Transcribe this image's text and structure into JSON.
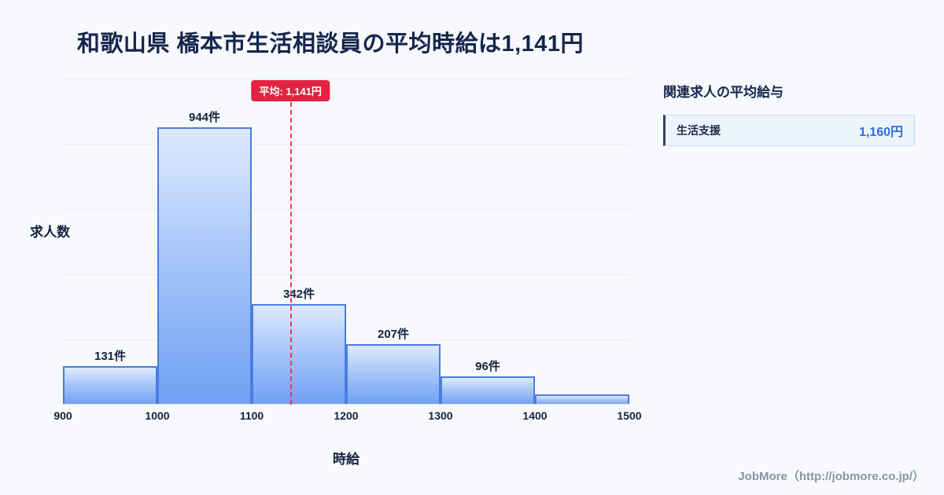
{
  "title": "和歌山県 橋本市生活相談員の平均時給は1,141円",
  "chart_data": {
    "type": "bar",
    "title": "和歌山県 橋本市生活相談員の平均時給は1,141円",
    "categories": [
      "900-1000",
      "1000-1100",
      "1100-1200",
      "1200-1300",
      "1300-1400",
      "1400-1500"
    ],
    "values": [
      131,
      944,
      342,
      207,
      96,
      35
    ],
    "bar_labels": [
      "131件",
      "944件",
      "342件",
      "207件",
      "96件",
      ""
    ],
    "x_ticks": [
      "900",
      "1000",
      "1100",
      "1200",
      "1300",
      "1400",
      "1500"
    ],
    "x_range": [
      900,
      1500
    ],
    "xlabel": "時給",
    "ylabel": "求人数",
    "ylim": [
      0,
      1000
    ],
    "grid": true,
    "legend": "none",
    "average": {
      "value": 1141,
      "label": "平均: 1,141円"
    }
  },
  "colors": {
    "bar_fill_top": "#ddeafe",
    "bar_fill_bottom": "#6fa0f3",
    "bar_border": "#4a7de0",
    "average_line": "#e8394b",
    "average_badge_bg": "#e22442",
    "value_accent": "#2e6ee0",
    "title_text": "#15264d",
    "background": "#f7f9fc"
  },
  "sidebar": {
    "heading": "関連求人の平均給与",
    "rows": [
      {
        "label": "生活支援",
        "value": "1,160円"
      }
    ]
  },
  "footer": {
    "credit": "JobMore（http://jobmore.co.jp/）"
  }
}
